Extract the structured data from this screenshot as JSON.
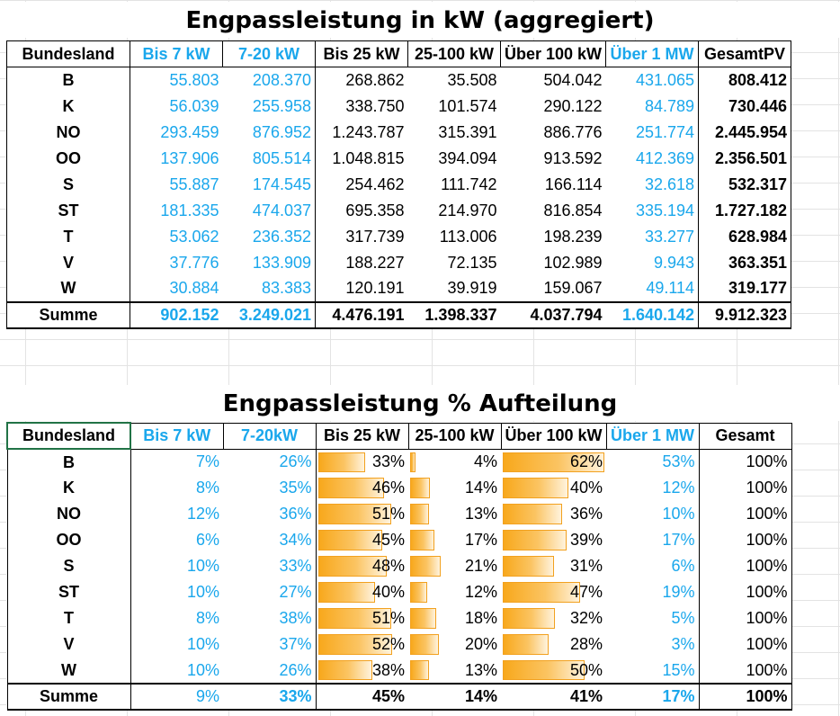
{
  "table1": {
    "title": "Engpassleistung in kW (aggregiert)",
    "headers": [
      "Bundesland",
      "Bis 7 kW",
      "7-20 kW",
      "Bis 25 kW",
      "25-100 kW",
      "Über 100 kW",
      "Über 1 MW",
      "GesamtPV"
    ],
    "rows": [
      [
        "B",
        "55.803",
        "208.370",
        "268.862",
        "35.508",
        "504.042",
        "431.065",
        "808.412"
      ],
      [
        "K",
        "56.039",
        "255.958",
        "338.750",
        "101.574",
        "290.122",
        "84.789",
        "730.446"
      ],
      [
        "NO",
        "293.459",
        "876.952",
        "1.243.787",
        "315.391",
        "886.776",
        "251.774",
        "2.445.954"
      ],
      [
        "OO",
        "137.906",
        "805.514",
        "1.048.815",
        "394.094",
        "913.592",
        "412.369",
        "2.356.501"
      ],
      [
        "S",
        "55.887",
        "174.545",
        "254.462",
        "111.742",
        "166.114",
        "32.618",
        "532.317"
      ],
      [
        "ST",
        "181.335",
        "474.037",
        "695.358",
        "214.970",
        "816.854",
        "335.194",
        "1.727.182"
      ],
      [
        "T",
        "53.062",
        "236.352",
        "317.739",
        "113.006",
        "198.239",
        "33.277",
        "628.984"
      ],
      [
        "V",
        "37.776",
        "133.909",
        "188.227",
        "72.135",
        "102.989",
        "9.943",
        "363.351"
      ],
      [
        "W",
        "30.884",
        "83.383",
        "120.191",
        "39.919",
        "159.067",
        "49.114",
        "319.177"
      ]
    ],
    "sum": [
      "Summe",
      "902.152",
      "3.249.021",
      "4.476.191",
      "1.398.337",
      "4.037.794",
      "1.640.142",
      "9.912.323"
    ]
  },
  "table2": {
    "title": "Engpassleistung % Aufteilung",
    "headers": [
      "Bundesland",
      "Bis 7 kW",
      "7-20kW",
      "Bis 25 kW",
      "25-100 kW",
      "Über 100 kW",
      "Über 1 MW",
      "Gesamt"
    ],
    "rows": [
      [
        "B",
        "7%",
        "26%",
        "33%",
        "4%",
        "62%",
        "53%",
        "100%"
      ],
      [
        "K",
        "8%",
        "35%",
        "46%",
        "14%",
        "40%",
        "12%",
        "100%"
      ],
      [
        "NO",
        "12%",
        "36%",
        "51%",
        "13%",
        "36%",
        "10%",
        "100%"
      ],
      [
        "OO",
        "6%",
        "34%",
        "45%",
        "17%",
        "39%",
        "17%",
        "100%"
      ],
      [
        "S",
        "10%",
        "33%",
        "48%",
        "21%",
        "31%",
        "6%",
        "100%"
      ],
      [
        "ST",
        "10%",
        "27%",
        "40%",
        "12%",
        "47%",
        "19%",
        "100%"
      ],
      [
        "T",
        "8%",
        "38%",
        "51%",
        "18%",
        "32%",
        "5%",
        "100%"
      ],
      [
        "V",
        "10%",
        "37%",
        "52%",
        "20%",
        "28%",
        "3%",
        "100%"
      ],
      [
        "W",
        "10%",
        "26%",
        "38%",
        "13%",
        "50%",
        "15%",
        "100%"
      ]
    ],
    "sum": [
      "Summe",
      "9%",
      "33%",
      "45%",
      "14%",
      "41%",
      "17%",
      "100%"
    ],
    "data_bar_columns": [
      3,
      4,
      5
    ],
    "data_bar_max": 0.62
  },
  "colors": {
    "accent_text": "#1aa7ec",
    "data_bar": "#f8a81c",
    "selected_cell_border": "#217346"
  }
}
